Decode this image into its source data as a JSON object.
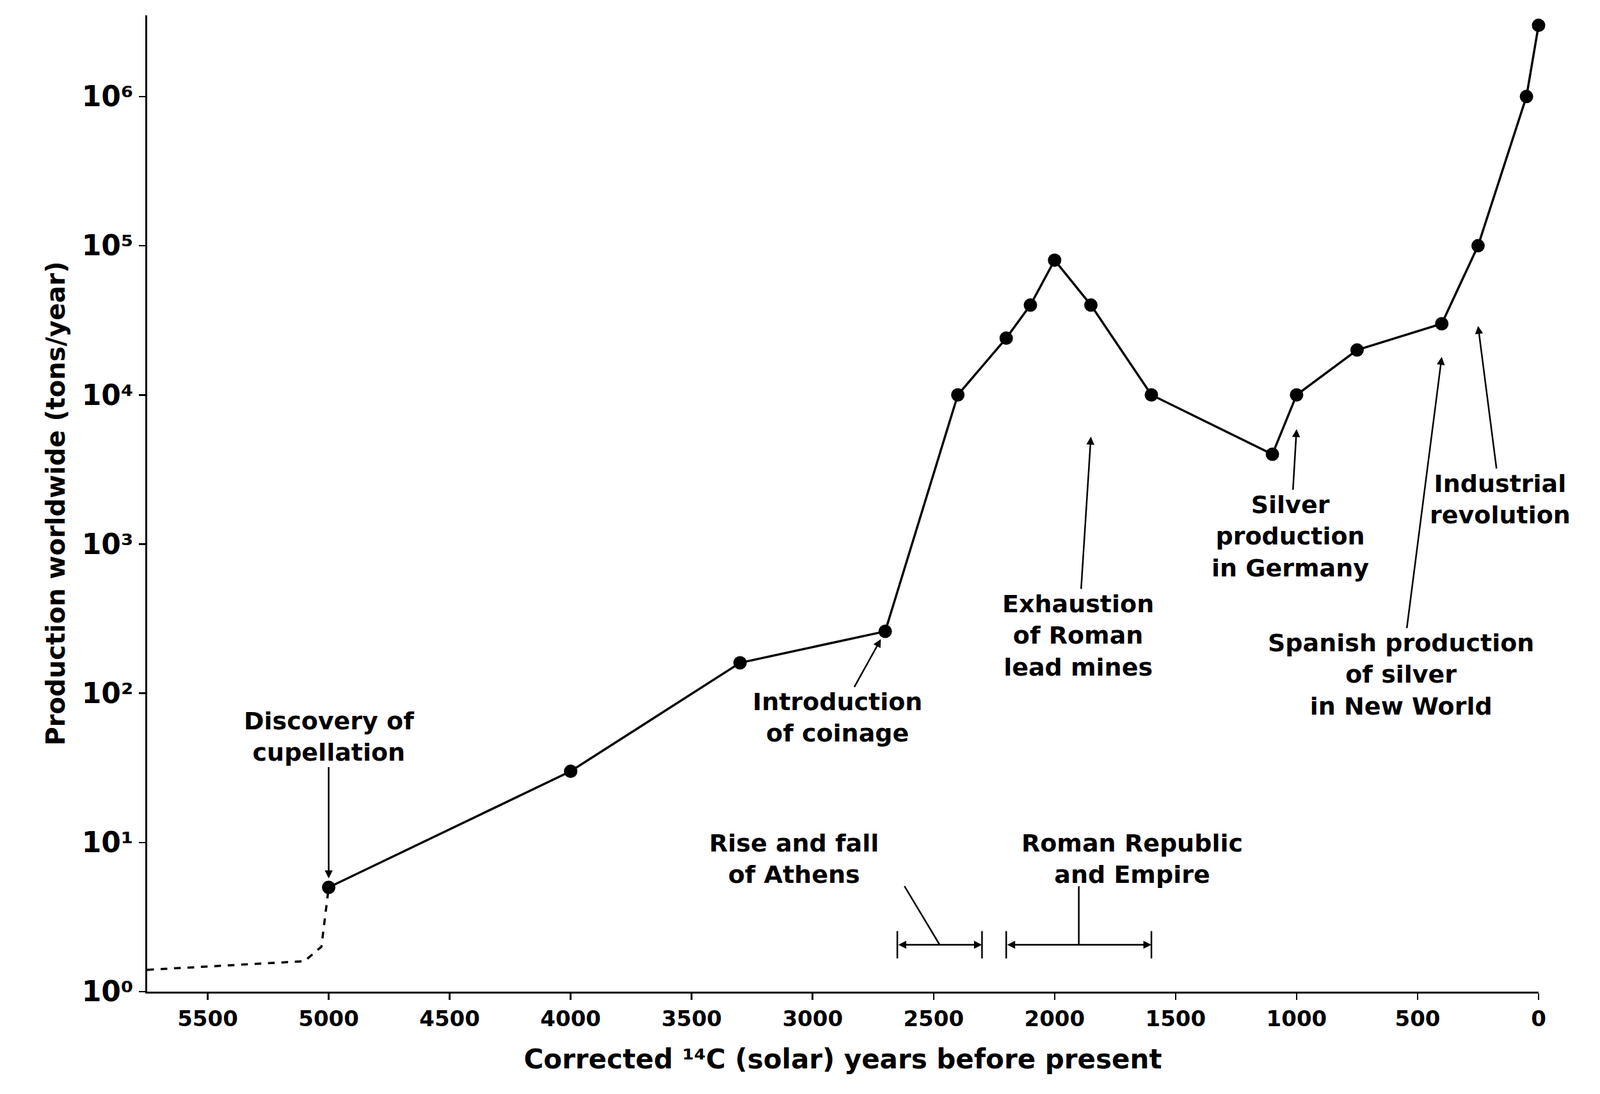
{
  "chart_data": {
    "type": "line",
    "x_label": "Corrected ¹⁴C (solar) years before present",
    "y_label": "Production worldwide (tons/year)",
    "log": "y",
    "grid": false,
    "xlim": [
      5750,
      0
    ],
    "ylim": [
      1,
      3500000
    ],
    "xticks": [
      5500,
      5000,
      4500,
      4000,
      3500,
      3000,
      2500,
      2000,
      1500,
      1000,
      500,
      0
    ],
    "yticks": [
      {
        "value": 1,
        "label": "10⁰"
      },
      {
        "value": 10,
        "label": "10¹"
      },
      {
        "value": 100,
        "label": "10²"
      },
      {
        "value": 1000,
        "label": "10³"
      },
      {
        "value": 10000,
        "label": "10⁴"
      },
      {
        "value": 100000,
        "label": "10⁵"
      },
      {
        "value": 1000000,
        "label": "10⁶"
      }
    ],
    "series": [
      {
        "color": "#000000",
        "line_style": "dashed",
        "marker": "none",
        "x": [
          5750,
          5100,
          5030,
          5000
        ],
        "values": [
          1.4,
          1.6,
          2,
          5
        ]
      },
      {
        "color": "#000000",
        "line_style": "solid",
        "marker": "circle",
        "x": [
          5000,
          4000,
          3300,
          2700,
          2400,
          2200,
          2100,
          2000,
          1850,
          1600,
          1100,
          1000,
          750,
          400,
          250,
          50,
          0
        ],
        "values": [
          5,
          30,
          160,
          260,
          10000,
          24000,
          40000,
          80000,
          40000,
          10000,
          4000,
          10000,
          20000,
          30000,
          100000,
          1000000,
          3000000
        ]
      }
    ],
    "annotations": [
      {
        "text": "Discovery of\ncupellation",
        "x": 5000,
        "y": 5
      },
      {
        "text": "Introduction\nof coinage",
        "x": 2700,
        "y": 260
      },
      {
        "text": "Exhaustion\nof Roman\nlead mines",
        "x": 1850,
        "y": 5250
      },
      {
        "text": "Silver\nproduction\nin Germany",
        "x": 1000,
        "y": 5900
      },
      {
        "text": "Spanish production\nof silver\nin New World",
        "x": 400,
        "y": 18000
      },
      {
        "text": "Industrial\nrevolution",
        "x": 250,
        "y": 29000
      }
    ],
    "periods": [
      {
        "text": "Rise and fall\nof Athens",
        "from": 2650,
        "to": 2300
      },
      {
        "text": "Roman Republic\nand Empire",
        "from": 2200,
        "to": 1600
      }
    ]
  }
}
